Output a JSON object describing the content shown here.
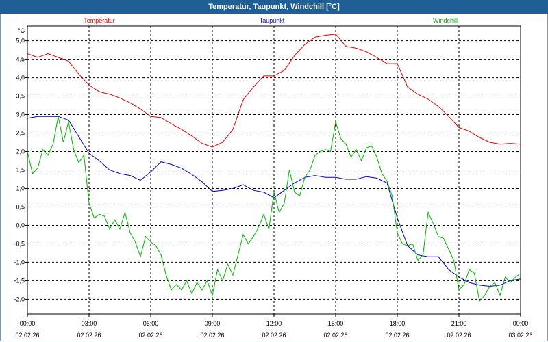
{
  "window": {
    "title": "Temperatur, Taupunkt, Windchill [°C]"
  },
  "chart_data": {
    "type": "line",
    "title": "Temperatur, Taupunkt, Windchill [°C]",
    "ylabel": "°C",
    "ylim": [
      -2.4,
      5.4
    ],
    "xlim": [
      0,
      24
    ],
    "yticks": [
      -2.0,
      -1.5,
      -1.0,
      -0.5,
      0.0,
      0.5,
      1.0,
      1.5,
      2.0,
      2.5,
      3.0,
      3.5,
      4.0,
      4.5,
      5.0
    ],
    "yticklabels": [
      "-2,0",
      "-1,5",
      "-1,0",
      "-0,5",
      "0,0",
      "0,5",
      "1,0",
      "1,5",
      "2,0",
      "2,5",
      "3,0",
      "3,5",
      "4,0",
      "4,5",
      "5,0"
    ],
    "xticks": [
      0,
      3,
      6,
      9,
      12,
      15,
      18,
      21,
      24
    ],
    "xticklabels_time": [
      "00:00",
      "03:00",
      "06:00",
      "09:00",
      "12:00",
      "15:00",
      "18:00",
      "21:00",
      "00:00"
    ],
    "xticklabels_date": [
      "02.02.26",
      "02.02.26",
      "02.02.26",
      "02.02.26",
      "02.02.26",
      "02.02.26",
      "02.02.26",
      "02.02.26",
      "03.02.26"
    ],
    "grid": true,
    "series": [
      {
        "name": "Temperatur",
        "color": "#e00000",
        "x": [
          0,
          0.5,
          1,
          1.5,
          2,
          2.5,
          3,
          3.5,
          4,
          4.5,
          5,
          5.5,
          6,
          6.5,
          7,
          7.5,
          8,
          8.5,
          9,
          9.5,
          10,
          10.5,
          11,
          11.5,
          12,
          12.5,
          13,
          13.5,
          14,
          14.5,
          15,
          15.5,
          16,
          16.5,
          17,
          17.5,
          18,
          18.5,
          19,
          19.5,
          20,
          20.5,
          21,
          21.5,
          22,
          22.5,
          23,
          23.5,
          24
        ],
        "values": [
          4.65,
          4.55,
          4.65,
          4.55,
          4.45,
          4.1,
          3.8,
          3.62,
          3.55,
          3.45,
          3.32,
          3.15,
          2.95,
          2.92,
          2.75,
          2.6,
          2.42,
          2.22,
          2.12,
          2.25,
          2.6,
          3.4,
          3.75,
          4.05,
          4.05,
          4.2,
          4.6,
          4.9,
          5.1,
          5.15,
          5.18,
          4.85,
          4.8,
          4.7,
          4.55,
          4.38,
          4.38,
          3.75,
          3.55,
          3.42,
          3.22,
          2.95,
          2.65,
          2.55,
          2.38,
          2.25,
          2.2,
          2.22,
          2.2
        ]
      },
      {
        "name": "Taupunkt",
        "color": "#0000cc",
        "x": [
          0,
          0.5,
          1,
          1.5,
          2,
          2.5,
          3,
          3.5,
          4,
          4.5,
          5,
          5.5,
          6,
          6.5,
          7,
          7.5,
          8,
          8.5,
          9,
          9.5,
          10,
          10.5,
          11,
          11.5,
          12,
          12.5,
          13,
          13.5,
          14,
          14.5,
          15,
          15.5,
          16,
          16.5,
          17,
          17.5,
          18,
          18.5,
          19,
          19.5,
          20,
          20.5,
          21,
          21.5,
          22,
          22.5,
          23,
          23.5,
          24
        ],
        "values": [
          2.9,
          2.95,
          2.95,
          2.95,
          2.85,
          2.4,
          1.95,
          1.75,
          1.5,
          1.4,
          1.35,
          1.22,
          1.45,
          1.72,
          1.65,
          1.55,
          1.38,
          1.18,
          0.92,
          0.95,
          1.0,
          1.1,
          0.95,
          0.9,
          0.75,
          0.95,
          1.15,
          1.3,
          1.35,
          1.3,
          1.3,
          1.25,
          1.25,
          1.32,
          1.28,
          1.15,
          0.2,
          -0.55,
          -0.8,
          -0.85,
          -0.85,
          -1.2,
          -1.4,
          -1.55,
          -1.62,
          -1.65,
          -1.62,
          -1.5,
          -1.45
        ]
      },
      {
        "name": "Windchill",
        "color": "#00b400",
        "x": [
          0,
          0.25,
          0.5,
          0.75,
          1,
          1.25,
          1.5,
          1.75,
          2,
          2.25,
          2.5,
          2.75,
          3,
          3.25,
          3.5,
          3.75,
          4,
          4.25,
          4.5,
          4.75,
          5,
          5.25,
          5.5,
          5.75,
          6,
          6.25,
          6.5,
          6.75,
          7,
          7.25,
          7.5,
          7.75,
          8,
          8.25,
          8.5,
          8.75,
          9,
          9.25,
          9.5,
          9.75,
          10,
          10.25,
          10.5,
          10.75,
          11,
          11.25,
          11.5,
          11.75,
          12,
          12.25,
          12.5,
          12.75,
          13,
          13.25,
          13.5,
          13.75,
          14,
          14.25,
          14.5,
          14.75,
          15,
          15.25,
          15.5,
          15.75,
          16,
          16.25,
          16.5,
          16.75,
          17,
          17.25,
          17.5,
          17.75,
          18,
          18.25,
          18.5,
          18.75,
          19,
          19.25,
          19.5,
          19.75,
          20,
          20.25,
          20.5,
          20.75,
          21,
          21.25,
          21.5,
          21.75,
          22,
          22.25,
          22.5,
          22.75,
          23,
          23.25,
          23.5,
          23.75,
          24
        ],
        "values": [
          2.0,
          1.4,
          1.55,
          2.05,
          1.9,
          2.2,
          2.95,
          2.25,
          2.8,
          2.05,
          1.7,
          1.9,
          0.6,
          0.2,
          0.3,
          0.25,
          -0.1,
          0.15,
          -0.1,
          0.35,
          -0.2,
          -0.45,
          -0.85,
          -0.3,
          -0.45,
          -0.55,
          -0.8,
          -1.35,
          -1.75,
          -1.6,
          -1.75,
          -1.5,
          -1.85,
          -1.55,
          -1.75,
          -1.5,
          -1.9,
          -1.2,
          -1.5,
          -1.05,
          -1.35,
          -0.8,
          -0.25,
          -0.5,
          -0.3,
          -0.05,
          0.3,
          -0.1,
          0.9,
          0.35,
          0.6,
          1.5,
          0.9,
          0.8,
          1.3,
          1.5,
          1.9,
          2.0,
          2.05,
          2.0,
          2.8,
          2.35,
          2.2,
          1.85,
          2.05,
          1.75,
          2.1,
          2.15,
          1.85,
          1.4,
          1.2,
          0.8,
          -0.2,
          -0.5,
          -0.55,
          -0.5,
          -0.95,
          -0.8,
          0.35,
          0.05,
          -0.3,
          -0.35,
          -0.65,
          -0.95,
          -1.75,
          -1.6,
          -1.2,
          -1.3,
          -2.05,
          -1.9,
          -1.65,
          -1.55,
          -1.9,
          -1.4,
          -1.55,
          -1.4,
          -1.3
        ]
      }
    ]
  }
}
